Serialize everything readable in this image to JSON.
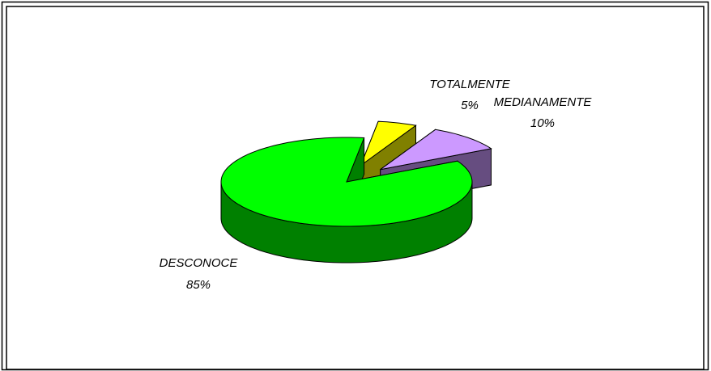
{
  "chart_data": {
    "type": "pie",
    "categories": [
      "TOTALMENTE",
      "MEDIANAMENTE",
      "DESCONOCE"
    ],
    "values": [
      5,
      10,
      85
    ],
    "value_labels": [
      "5%",
      "10%",
      "85%"
    ],
    "colors": [
      "#ffff00",
      "#cc99ff",
      "#00ff00"
    ]
  }
}
